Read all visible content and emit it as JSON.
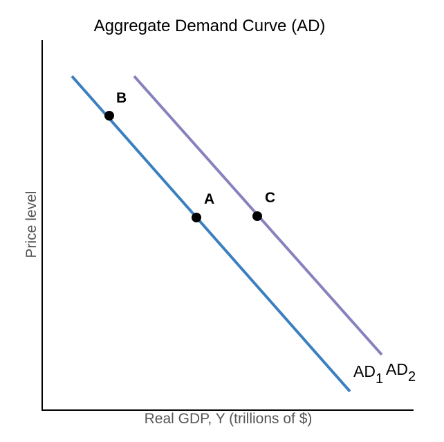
{
  "title": "Aggregate Demand Curve (AD)",
  "x_axis_label": "Real GDP, Y (trillions of $)",
  "y_axis_label": "Price level",
  "curves": [
    {
      "name": "AD",
      "subscript": "1",
      "color": "#3a7fbf"
    },
    {
      "name": "AD",
      "subscript": "2",
      "color": "#8782bd"
    }
  ],
  "points": [
    {
      "label": "A",
      "on_curve": "AD1"
    },
    {
      "label": "B",
      "on_curve": "AD1"
    },
    {
      "label": "C",
      "on_curve": "AD2"
    }
  ],
  "colors": {
    "axis": "#000000",
    "point": "#000000",
    "axis_label_text": "#555555"
  }
}
